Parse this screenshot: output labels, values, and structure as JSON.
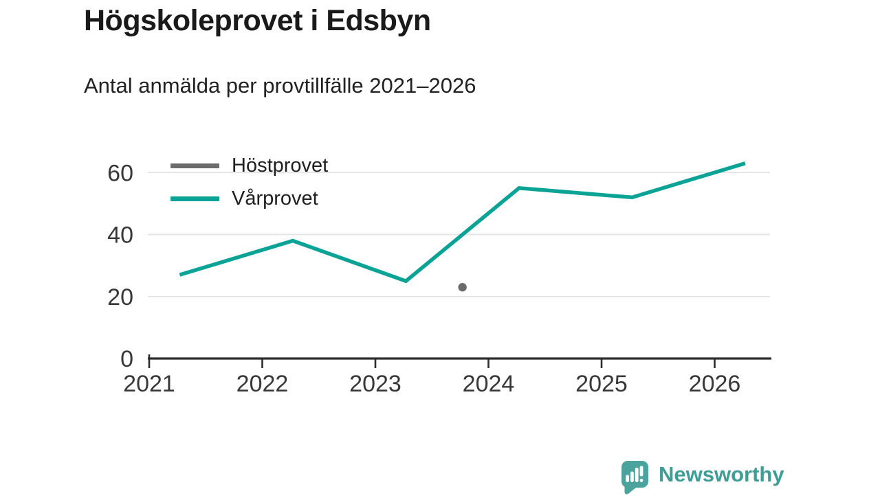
{
  "header": {
    "title": "Högskoleprovet i Edsbyn",
    "subtitle": "Antal anmälda per provtillfälle 2021–2026"
  },
  "chart_data": {
    "type": "line",
    "title": "Högskoleprovet i Edsbyn",
    "subtitle": "Antal anmälda per provtillfälle 2021–2026",
    "xlabel": "",
    "ylabel": "",
    "xlim": [
      2021,
      2026.55
    ],
    "ylim": [
      0,
      66
    ],
    "yticks": [
      0,
      20,
      40,
      60
    ],
    "xticks": [
      2021,
      2022,
      2023,
      2024,
      2025,
      2026
    ],
    "grid": true,
    "legend_position": "top-left-inside",
    "colors": {
      "grid": "#e2e2e2",
      "axis": "#2d2d2d",
      "tick_label": "#383838"
    },
    "series": [
      {
        "name": "Höstprovet",
        "color": "#6b6b6b",
        "style": "point",
        "x": [
          2023.77
        ],
        "values": [
          23
        ]
      },
      {
        "name": "Vårprovet",
        "color": "#0ba396",
        "style": "line",
        "x": [
          2021.27,
          2022.27,
          2023.27,
          2024.27,
          2025.27,
          2026.27
        ],
        "values": [
          27,
          38,
          25,
          55,
          52,
          63
        ]
      }
    ]
  },
  "branding": {
    "logo_text": "Newsworthy",
    "logo_icon": "bar-chart-speech-bubble-icon",
    "logo_mark_color": "#4aa39c",
    "logo_text_color": "#3e9d96"
  }
}
